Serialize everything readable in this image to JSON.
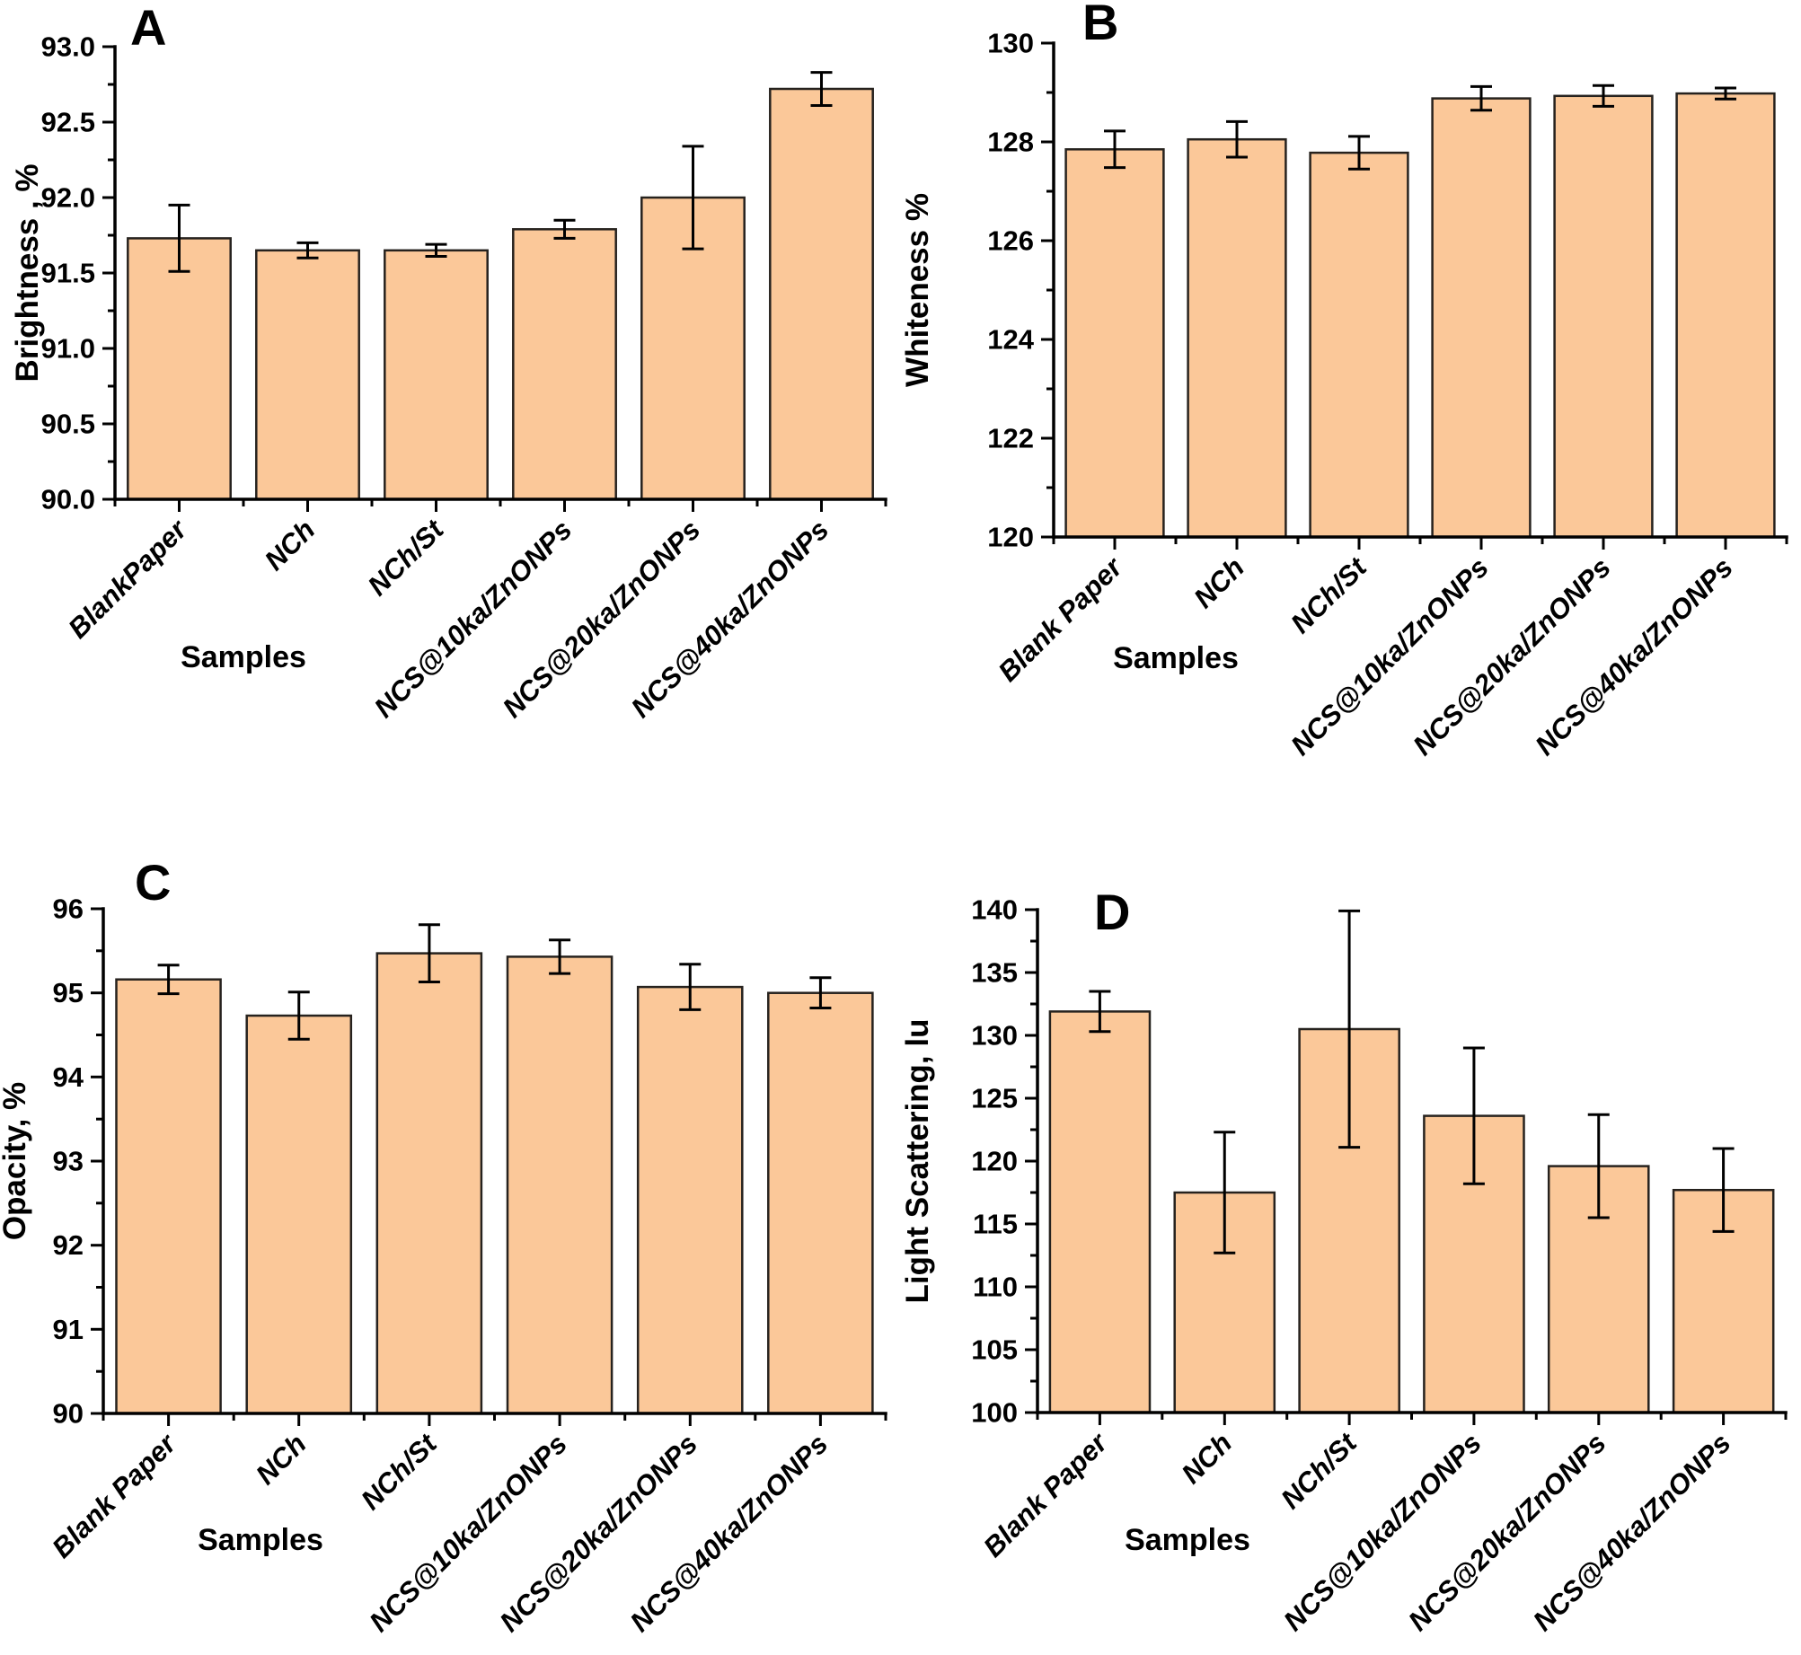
{
  "figure": {
    "background": "#ffffff",
    "bar_fill": "#FBC899",
    "bar_edge": "#26221e",
    "error_color": "#000000",
    "axis_color": "#000000"
  },
  "chart_data": [
    {
      "type": "bar",
      "panel_label": "A",
      "title": "",
      "ylabel": "Brightness , %",
      "xlabel": "Samples",
      "ylim": [
        90,
        93
      ],
      "ytick_step": 0.5,
      "yminor_step": 0.25,
      "ytick_decimals": 1,
      "grid": false,
      "legend": "none",
      "categories": [
        "BlankPaper",
        "NCh",
        "NCh/St",
        "NCS@10ka/ZnONPs",
        "NCS@20ka/ZnONPs",
        "NCS@40ka/ZnONPs"
      ],
      "values": [
        91.73,
        91.65,
        91.65,
        91.79,
        92.0,
        92.72
      ],
      "errors": [
        0.22,
        0.05,
        0.04,
        0.06,
        0.34,
        0.11
      ]
    },
    {
      "type": "bar",
      "panel_label": "B",
      "title": "",
      "ylabel": "Whiteness %",
      "xlabel": "Samples",
      "ylim": [
        120,
        130
      ],
      "ytick_step": 2,
      "yminor_step": 1,
      "ytick_decimals": 0,
      "grid": false,
      "legend": "none",
      "categories": [
        "Blank Paper",
        "NCh",
        "NCh/St",
        "NCS@10ka/ZnONPs",
        "NCS@20ka/ZnONPs",
        "NCS@40ka/ZnONPs"
      ],
      "values": [
        127.85,
        128.05,
        127.78,
        128.88,
        128.93,
        128.98
      ],
      "errors": [
        0.37,
        0.36,
        0.33,
        0.24,
        0.21,
        0.11
      ]
    },
    {
      "type": "bar",
      "panel_label": "C",
      "title": "",
      "ylabel": "Opacity, %",
      "xlabel": "Samples",
      "ylim": [
        90,
        96
      ],
      "ytick_step": 1,
      "yminor_step": 0.5,
      "ytick_decimals": 0,
      "grid": false,
      "legend": "none",
      "categories": [
        "Blank Paper",
        "NCh",
        "NCh/St",
        "NCS@10ka/ZnONPs",
        "NCS@20ka/ZnONPs",
        "NCS@40ka/ZnONPs"
      ],
      "values": [
        95.16,
        94.73,
        95.47,
        95.43,
        95.07,
        95.0
      ],
      "errors": [
        0.17,
        0.28,
        0.34,
        0.2,
        0.27,
        0.18
      ]
    },
    {
      "type": "bar",
      "panel_label": "D",
      "title": "",
      "ylabel": "Light Scattering,  lu",
      "xlabel": "Samples",
      "ylim": [
        100,
        140
      ],
      "ytick_step": 5,
      "yminor_step": 2.5,
      "ytick_decimals": 0,
      "grid": false,
      "legend": "none",
      "categories": [
        "Blank Paper",
        "NCh",
        "NCh/St",
        "NCS@10ka/ZnONPs",
        "NCS@20ka/ZnONPs",
        "NCS@40ka/ZnONPs"
      ],
      "values": [
        131.9,
        117.5,
        130.5,
        123.6,
        119.6,
        117.7
      ],
      "errors": [
        1.6,
        4.8,
        9.4,
        5.4,
        4.1,
        3.3
      ]
    }
  ]
}
